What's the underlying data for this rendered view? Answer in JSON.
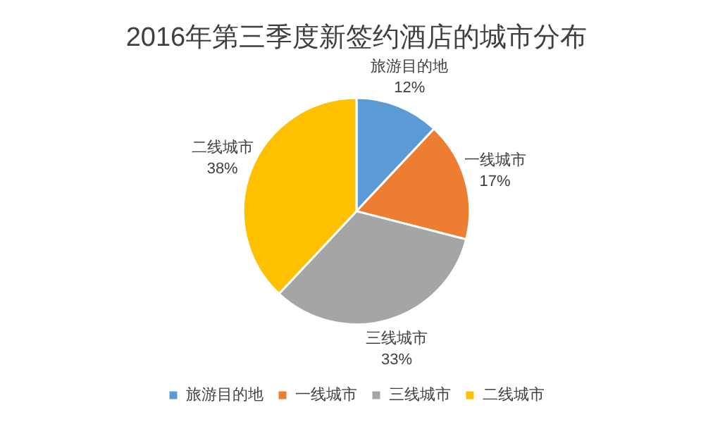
{
  "chart_data": {
    "type": "pie",
    "title": "2016年第三季度新签约酒店的城市分布",
    "categories": [
      "旅游目的地",
      "一线城市",
      "三线城市",
      "二线城市"
    ],
    "values": [
      12,
      17,
      33,
      38
    ],
    "colors": [
      "#5b9bd5",
      "#ed7d31",
      "#a5a5a5",
      "#ffc000"
    ],
    "value_labels": [
      "12%",
      "17%",
      "33%",
      "38%"
    ],
    "legend": "bottom"
  }
}
